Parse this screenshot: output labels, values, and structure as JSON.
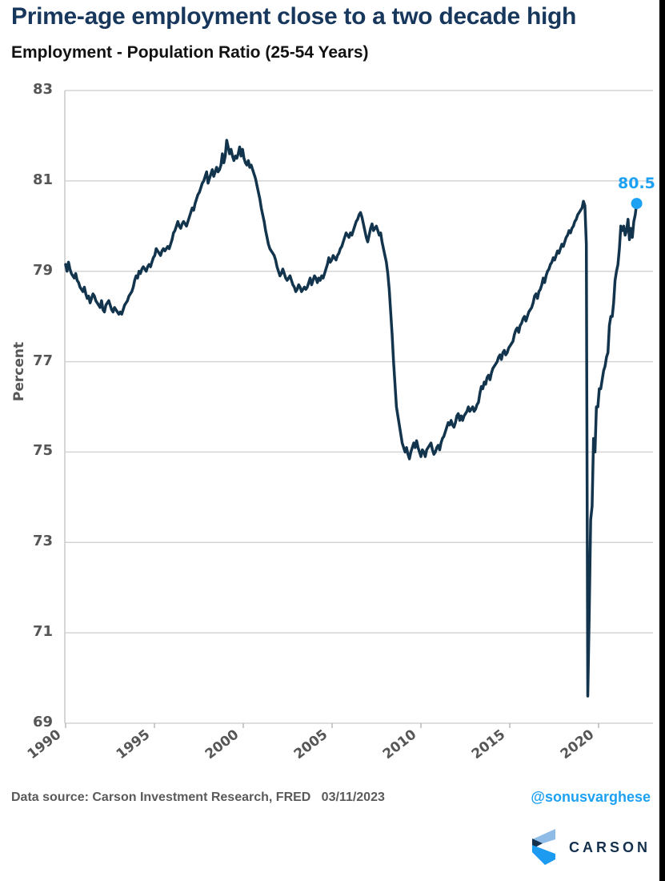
{
  "title": "Prime-age employment close to a two decade high",
  "subtitle": "Employment - Population Ratio (25-54 Years)",
  "footer": {
    "source": "Data source: Carson Investment Research, FRED   03/11/2023",
    "handle": "@sonusvarghese",
    "brand": "CARSON"
  },
  "colors": {
    "title_navy": "#17375c",
    "line_navy": "#12344d",
    "accent_blue": "#1da1f2",
    "tick_gray": "#565656",
    "grid_gray": "#d4d4d4",
    "logo_light_blue": "#8fbce6",
    "logo_bright_blue": "#1d9bf0",
    "logo_navy": "#14304d"
  },
  "chart_data": {
    "type": "line",
    "title": "Employment - Population Ratio (25-54 Years)",
    "xlabel": "",
    "ylabel": "Percent",
    "x_ticks": [
      1990,
      1995,
      2000,
      2005,
      2010,
      2015,
      2020
    ],
    "y_ticks": [
      69,
      71,
      73,
      75,
      77,
      79,
      81,
      83
    ],
    "ylim": [
      69,
      83
    ],
    "xlim": [
      1990,
      2023.2
    ],
    "grid": "horizontal",
    "legend": "none",
    "last_point": {
      "x": 2023.08,
      "y": 80.5,
      "label": "80.5"
    },
    "series": [
      {
        "name": "Employment-Population Ratio (25-54 Years)",
        "start_year": 1990,
        "frequency": "monthly",
        "values": [
          79.15,
          79.0,
          79.2,
          79.05,
          78.95,
          78.9,
          78.85,
          78.95,
          78.8,
          78.75,
          78.65,
          78.6,
          78.55,
          78.65,
          78.5,
          78.4,
          78.45,
          78.3,
          78.4,
          78.5,
          78.45,
          78.35,
          78.3,
          78.25,
          78.2,
          78.35,
          78.15,
          78.1,
          78.25,
          78.3,
          78.35,
          78.25,
          78.15,
          78.1,
          78.2,
          78.15,
          78.1,
          78.05,
          78.1,
          78.05,
          78.15,
          78.25,
          78.3,
          78.35,
          78.45,
          78.5,
          78.55,
          78.65,
          78.8,
          78.9,
          78.85,
          79.0,
          78.95,
          79.05,
          79.1,
          79.05,
          79.0,
          79.1,
          79.15,
          79.1,
          79.2,
          79.3,
          79.35,
          79.5,
          79.45,
          79.4,
          79.35,
          79.45,
          79.5,
          79.45,
          79.5,
          79.55,
          79.5,
          79.6,
          79.7,
          79.85,
          79.9,
          80.0,
          80.1,
          80.0,
          79.95,
          80.05,
          80.1,
          80.05,
          80.0,
          80.1,
          80.2,
          80.3,
          80.4,
          80.35,
          80.5,
          80.6,
          80.7,
          80.75,
          80.85,
          80.95,
          81.0,
          81.1,
          81.2,
          80.95,
          81.05,
          81.15,
          81.25,
          81.1,
          81.2,
          81.3,
          81.2,
          81.25,
          81.35,
          81.6,
          81.4,
          81.55,
          81.9,
          81.75,
          81.6,
          81.7,
          81.55,
          81.45,
          81.55,
          81.5,
          81.6,
          81.75,
          81.55,
          81.7,
          81.5,
          81.4,
          81.35,
          81.45,
          81.3,
          81.35,
          81.25,
          81.15,
          81.05,
          80.9,
          80.75,
          80.6,
          80.4,
          80.25,
          80.1,
          79.9,
          79.75,
          79.6,
          79.5,
          79.45,
          79.4,
          79.35,
          79.25,
          79.1,
          79.0,
          78.9,
          78.95,
          79.05,
          78.95,
          78.85,
          78.8,
          78.85,
          78.9,
          78.8,
          78.7,
          78.65,
          78.55,
          78.6,
          78.7,
          78.65,
          78.55,
          78.6,
          78.65,
          78.6,
          78.65,
          78.75,
          78.85,
          78.7,
          78.8,
          78.9,
          78.85,
          78.75,
          78.85,
          78.8,
          78.9,
          78.85,
          78.95,
          79.05,
          79.15,
          79.3,
          79.2,
          79.25,
          79.35,
          79.3,
          79.25,
          79.35,
          79.4,
          79.5,
          79.55,
          79.65,
          79.75,
          79.85,
          79.8,
          79.75,
          79.85,
          79.8,
          79.9,
          80.0,
          80.1,
          80.15,
          80.25,
          80.3,
          80.2,
          80.05,
          79.9,
          79.75,
          79.65,
          79.8,
          79.95,
          80.05,
          79.9,
          79.95,
          80.0,
          79.9,
          79.8,
          79.85,
          79.65,
          79.5,
          79.35,
          79.2,
          78.95,
          78.6,
          78.1,
          77.6,
          77.0,
          76.5,
          76.0,
          75.8,
          75.6,
          75.4,
          75.2,
          75.1,
          75.0,
          75.1,
          74.95,
          74.85,
          75.0,
          75.1,
          75.2,
          75.1,
          75.25,
          75.1,
          75.0,
          74.9,
          75.05,
          75.0,
          74.9,
          75.05,
          75.1,
          75.15,
          75.2,
          75.05,
          74.95,
          75.0,
          75.1,
          75.15,
          75.05,
          75.2,
          75.3,
          75.35,
          75.45,
          75.55,
          75.65,
          75.6,
          75.7,
          75.6,
          75.55,
          75.65,
          75.8,
          75.85,
          75.7,
          75.8,
          75.7,
          75.8,
          75.85,
          75.9,
          76.0,
          75.9,
          75.95,
          76.0,
          75.9,
          75.95,
          76.05,
          76.1,
          76.3,
          76.45,
          76.4,
          76.55,
          76.5,
          76.65,
          76.7,
          76.6,
          76.75,
          76.85,
          76.9,
          76.95,
          77.0,
          77.1,
          77.15,
          77.05,
          77.2,
          77.25,
          77.15,
          77.2,
          77.3,
          77.35,
          77.4,
          77.45,
          77.6,
          77.7,
          77.75,
          77.65,
          77.8,
          77.85,
          77.95,
          78.0,
          77.9,
          78.0,
          78.1,
          78.15,
          78.2,
          78.3,
          78.45,
          78.5,
          78.4,
          78.55,
          78.6,
          78.7,
          78.85,
          78.75,
          78.9,
          79.0,
          79.05,
          79.15,
          79.2,
          79.3,
          79.25,
          79.35,
          79.45,
          79.4,
          79.5,
          79.6,
          79.55,
          79.65,
          79.75,
          79.8,
          79.9,
          79.85,
          79.95,
          80.0,
          80.1,
          80.15,
          80.25,
          80.3,
          80.35,
          80.4,
          80.55,
          80.45,
          79.6,
          69.6,
          71.4,
          73.5,
          73.8,
          75.3,
          75.0,
          76.0,
          76.0,
          76.4,
          76.4,
          76.6,
          76.8,
          76.9,
          77.1,
          77.2,
          77.8,
          78.0,
          78.0,
          78.3,
          78.8,
          79.0,
          79.15,
          79.5,
          80.0,
          79.9,
          80.0,
          79.8,
          79.9,
          80.15,
          79.7,
          79.95,
          79.75,
          80.1,
          80.25,
          80.5
        ]
      }
    ]
  }
}
